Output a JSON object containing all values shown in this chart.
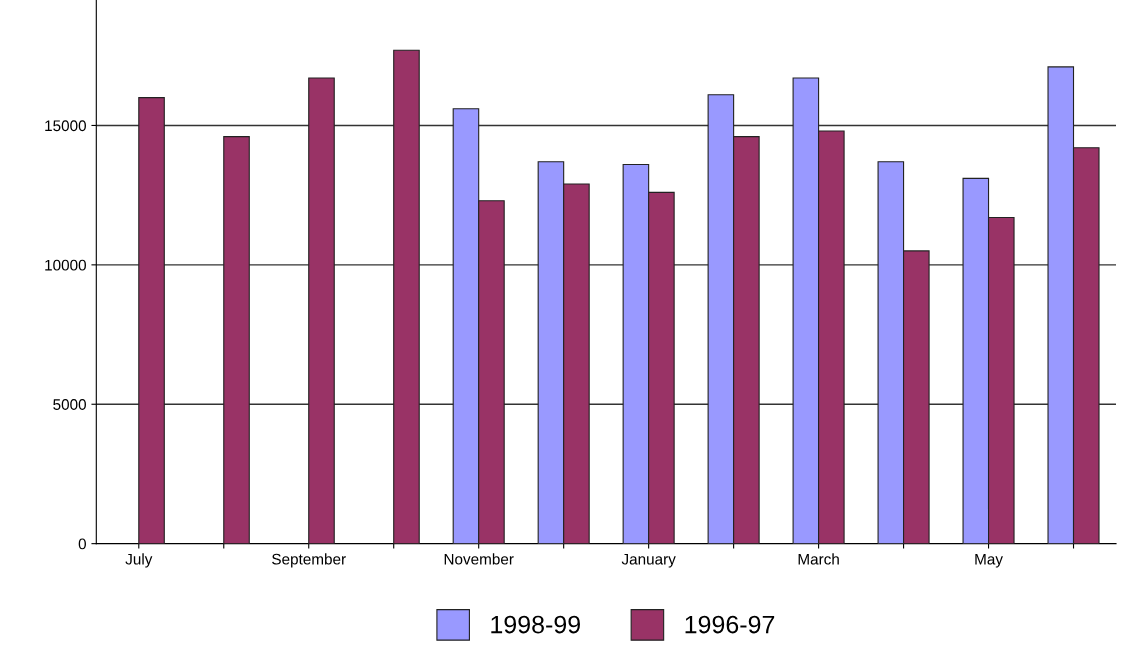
{
  "chart_data": {
    "type": "bar",
    "categories": [
      "July",
      null,
      "September",
      null,
      "November",
      null,
      "January",
      null,
      "March",
      null,
      "May",
      null
    ],
    "series": [
      {
        "name": "1998-99",
        "color": "#9999ff",
        "values": [
          null,
          null,
          null,
          null,
          15600,
          13700,
          13600,
          16100,
          16700,
          13700,
          13100,
          17100
        ]
      },
      {
        "name": "1996-97",
        "color": "#993366",
        "values": [
          16000,
          14600,
          16700,
          17700,
          12300,
          12900,
          12600,
          14600,
          14800,
          10500,
          11700,
          14200
        ]
      }
    ],
    "ylim": [
      0,
      19500
    ],
    "yticks": [
      0,
      5000,
      10000,
      15000
    ],
    "grid": "y",
    "legend": "bottom"
  }
}
